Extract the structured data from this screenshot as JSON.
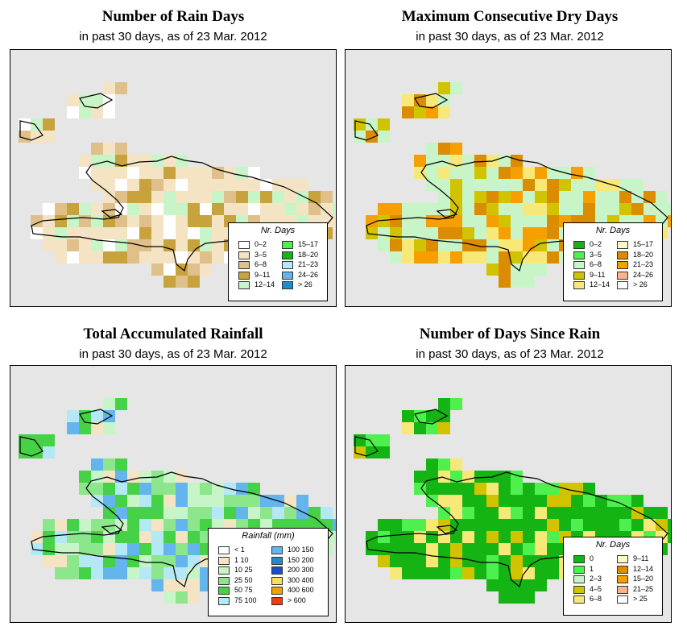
{
  "colors": {
    "map_bg": "#e6e6e6",
    "coast": "#000000"
  },
  "panels": [
    {
      "id": "rain-days",
      "title": "Number of Rain Days",
      "subtitle": "in past 30 days, as of  23 Mar. 2012",
      "legend": {
        "title": "Nr. Days",
        "items": [
          {
            "label": "0–2",
            "color": "#ffffff"
          },
          {
            "label": "3–5",
            "color": "#f5e4c4"
          },
          {
            "label": "6–8",
            "color": "#dfc08a"
          },
          {
            "label": "9–11",
            "color": "#c8a23c"
          },
          {
            "label": "12–14",
            "color": "#c8f5c8"
          },
          {
            "label": "15–17",
            "color": "#4ef04e"
          },
          {
            "label": "18–20",
            "color": "#14b414"
          },
          {
            "label": "21–23",
            "color": "#b4e8f5"
          },
          {
            "label": "24–26",
            "color": "#64b4ee"
          },
          {
            "label": "> 26",
            "color": "#1e8cd2"
          }
        ]
      }
    },
    {
      "id": "dry-days",
      "title": "Maximum Consecutive Dry Days",
      "subtitle": "in past 30 days, as of  23 Mar. 2012",
      "legend": {
        "title": "Nr. Days",
        "items": [
          {
            "label": "0–2",
            "color": "#14b414"
          },
          {
            "label": "3–5",
            "color": "#4ef04e"
          },
          {
            "label": "6–8",
            "color": "#c8f5c8"
          },
          {
            "label": "9–11",
            "color": "#d2c300"
          },
          {
            "label": "12–14",
            "color": "#f8e878"
          },
          {
            "label": "15–17",
            "color": "#fffac8"
          },
          {
            "label": "18–20",
            "color": "#dc8c00"
          },
          {
            "label": "21–23",
            "color": "#f5a000"
          },
          {
            "label": "24–26",
            "color": "#f8b48c"
          },
          {
            "label": "> 26",
            "color": "#ffffff"
          }
        ]
      }
    },
    {
      "id": "rainfall",
      "title": "Total Accumulated Rainfall",
      "subtitle": "in past 30 days, as of  23 Mar. 2012",
      "legend": {
        "title": "Rainfall (mm)",
        "items": [
          {
            "label": "< 1",
            "color": "#ffffff"
          },
          {
            "label": "1    10",
            "color": "#f5e4c4"
          },
          {
            "label": "10    25",
            "color": "#c8f5c8"
          },
          {
            "label": "25    50",
            "color": "#8ce68c"
          },
          {
            "label": "50    75",
            "color": "#46d246"
          },
          {
            "label": "75  100",
            "color": "#b4e8f5"
          },
          {
            "label": "100  150",
            "color": "#64b4ee"
          },
          {
            "label": "150  200",
            "color": "#1e8cd2"
          },
          {
            "label": "200  300",
            "color": "#1450c8"
          },
          {
            "label": "300  400",
            "color": "#f8e050"
          },
          {
            "label": "400  600",
            "color": "#f5a000"
          },
          {
            "label": "> 600",
            "color": "#f03c14"
          }
        ]
      }
    },
    {
      "id": "since-rain",
      "title": "Number of Days Since Rain",
      "subtitle": "in past 30 days, as of  23 Mar. 2012",
      "legend": {
        "title": "Nr. Days",
        "items": [
          {
            "label": "0",
            "color": "#14b414"
          },
          {
            "label": "1",
            "color": "#4ef04e"
          },
          {
            "label": "2–3",
            "color": "#c8f5c8"
          },
          {
            "label": "4–5",
            "color": "#d2c300"
          },
          {
            "label": "6–8",
            "color": "#f8e878"
          },
          {
            "label": "9–11",
            "color": "#fffac8"
          },
          {
            "label": "12–14",
            "color": "#dc8c00"
          },
          {
            "label": "15–20",
            "color": "#f5a000"
          },
          {
            "label": "21–25",
            "color": "#f8b48c"
          },
          {
            "label": "> 25",
            "color": "#ffffff"
          }
        ]
      }
    }
  ]
}
